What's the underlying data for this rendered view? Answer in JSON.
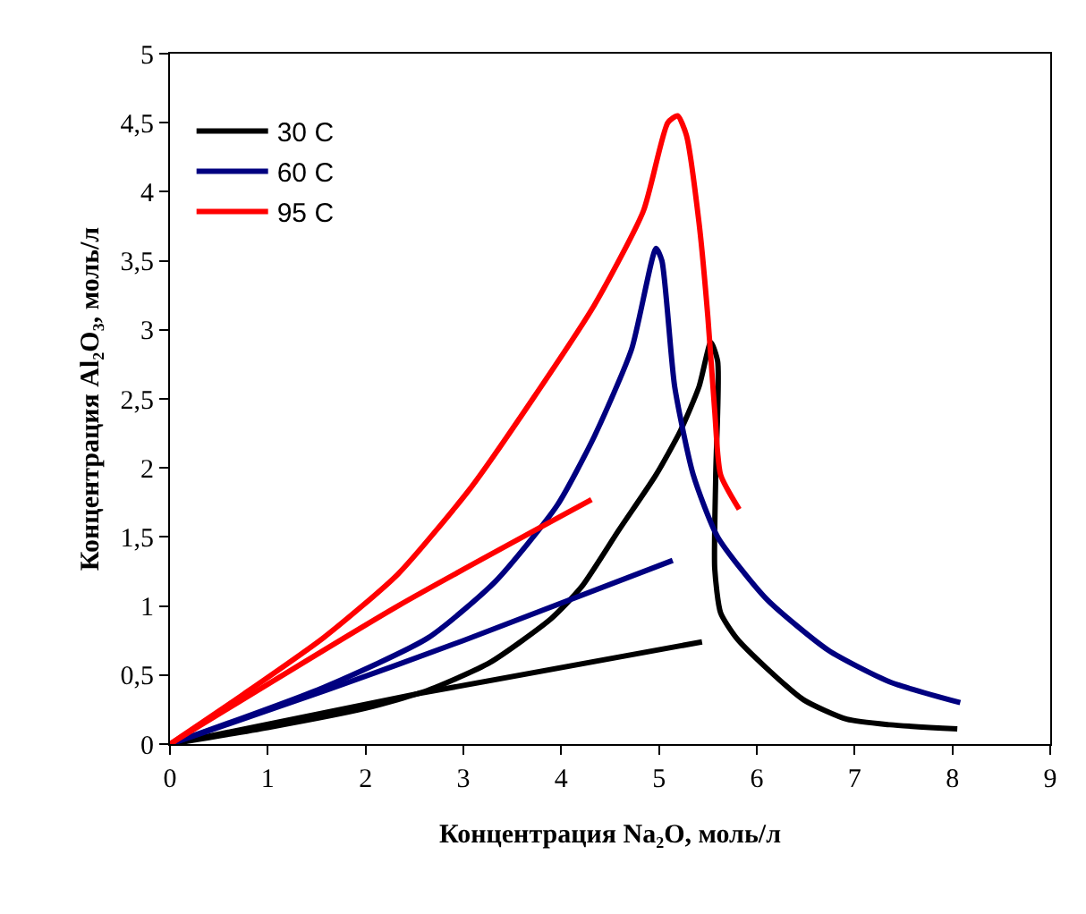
{
  "chart_data": {
    "type": "line",
    "xlabel": "Концентрация Na₂O, моль/л",
    "ylabel": "Концентрация Al₂O₃, моль/л",
    "xlim": [
      0,
      9
    ],
    "xticks": [
      0,
      1,
      2,
      3,
      4,
      5,
      6,
      7,
      8,
      9
    ],
    "ylim": [
      0,
      5
    ],
    "yticks": [
      0,
      {
        "value": 0.5,
        "label": "0,5"
      },
      1,
      {
        "value": 1.5,
        "label": "1,5"
      },
      2,
      {
        "value": 2.5,
        "label": "2,5"
      },
      3,
      {
        "value": 3.5,
        "label": "3,5"
      },
      4,
      {
        "value": 4.5,
        "label": "4,5"
      },
      5
    ],
    "grid": false,
    "legend": "top left",
    "marker": "none",
    "line_style": "solid",
    "series": [
      {
        "name": "30 C",
        "color": "#000000",
        "x": [
          0,
          1,
          2,
          2.64,
          3.27,
          3.9,
          4.21,
          4.59,
          4.97,
          5.22,
          5.41,
          5.53,
          5.6,
          5.58,
          5.57,
          5.63,
          5.79,
          6.1,
          6.48,
          6.92,
          7.36,
          8.05
        ],
        "values": [
          0,
          0.12,
          0.26,
          0.39,
          0.59,
          0.91,
          1.14,
          1.55,
          1.95,
          2.27,
          2.59,
          2.91,
          2.77,
          1.95,
          1.27,
          0.95,
          0.77,
          0.55,
          0.32,
          0.18,
          0.14,
          0.11
        ]
      },
      {
        "color": "#000000",
        "x": [
          0,
          2.5,
          5.44
        ],
        "values": [
          0,
          0.36,
          0.74
        ]
      },
      {
        "name": "60 C",
        "color": "#000080",
        "x": [
          0,
          1.57,
          2.64,
          3.33,
          3.96,
          4.34,
          4.72,
          4.97,
          5.03,
          5.16,
          5.35,
          5.6,
          6.1,
          6.73,
          7.36,
          8.08
        ],
        "values": [
          0,
          0.41,
          0.77,
          1.18,
          1.73,
          2.23,
          2.86,
          3.59,
          3.5,
          2.59,
          1.95,
          1.5,
          1.05,
          0.68,
          0.45,
          0.3
        ]
      },
      {
        "color": "#000080",
        "x": [
          0,
          1.6,
          3,
          5.14
        ],
        "values": [
          0,
          0.39,
          0.75,
          1.33
        ]
      },
      {
        "name": "95 C",
        "color": "#ff0000",
        "x": [
          0,
          0.75,
          1.57,
          2.33,
          3.08,
          3.71,
          4.34,
          4.84,
          5.09,
          5.19,
          5.28,
          5.41,
          5.5,
          5.57,
          5.63,
          5.82
        ],
        "values": [
          0,
          0.36,
          0.77,
          1.23,
          1.86,
          2.5,
          3.18,
          3.86,
          4.5,
          4.55,
          4.41,
          3.77,
          3.09,
          2.41,
          1.95,
          1.7
        ]
      },
      {
        "color": "#ff0000",
        "x": [
          0,
          2.33,
          4.31
        ],
        "values": [
          0,
          1.0,
          1.77
        ]
      }
    ]
  }
}
